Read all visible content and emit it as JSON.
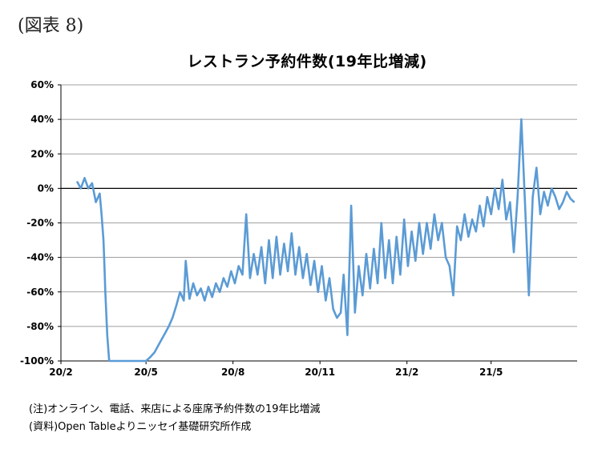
{
  "figure_label": "(図表 8)",
  "notes": {
    "note": "(注)オンライン、電話、来店による座席予約件数の19年比増減",
    "source": "(資料)Open Tableよりニッセイ基礎研究所作成"
  },
  "colors": {
    "line": "#5b9bd5",
    "grid": "#808080",
    "axis": "#000000"
  },
  "chart_data": {
    "type": "line",
    "title": "レストラン予約件数(19年比増減)",
    "xlabel": "",
    "ylabel": "",
    "ylim": [
      -100,
      60
    ],
    "yticks": [
      60,
      40,
      20,
      0,
      -20,
      -40,
      -60,
      -80,
      -100
    ],
    "ytick_labels": [
      "60%",
      "40%",
      "20%",
      "0%",
      "-20%",
      "-40%",
      "-60%",
      "-80%",
      "-100%"
    ],
    "xticks": [
      "20/2",
      "20/5",
      "20/8",
      "20/11",
      "21/2",
      "21/5"
    ],
    "grid": true,
    "legend": "none",
    "series": [
      {
        "x": [
          "2020-02-18",
          "2020-02-22",
          "2020-02-26",
          "2020-03-01",
          "2020-03-05",
          "2020-03-09",
          "2020-03-13",
          "2020-03-15",
          "2020-03-17",
          "2020-03-18",
          "2020-03-19",
          "2020-03-21",
          "2020-03-23",
          "2020-03-27",
          "2020-04-01",
          "2020-04-10",
          "2020-04-20",
          "2020-05-01",
          "2020-05-05",
          "2020-05-10",
          "2020-05-15",
          "2020-05-20",
          "2020-05-25",
          "2020-05-29",
          "2020-06-02",
          "2020-06-06",
          "2020-06-10",
          "2020-06-12",
          "2020-06-16",
          "2020-06-20",
          "2020-06-24",
          "2020-06-28",
          "2020-07-02",
          "2020-07-06",
          "2020-07-10",
          "2020-07-14",
          "2020-07-18",
          "2020-07-22",
          "2020-07-26",
          "2020-07-30",
          "2020-08-03",
          "2020-08-07",
          "2020-08-11",
          "2020-08-15",
          "2020-08-19",
          "2020-08-23",
          "2020-08-27",
          "2020-08-31",
          "2020-09-04",
          "2020-09-08",
          "2020-09-12",
          "2020-09-16",
          "2020-09-20",
          "2020-09-24",
          "2020-09-28",
          "2020-10-02",
          "2020-10-06",
          "2020-10-10",
          "2020-10-14",
          "2020-10-18",
          "2020-10-22",
          "2020-10-26",
          "2020-10-30",
          "2020-11-03",
          "2020-11-07",
          "2020-11-11",
          "2020-11-15",
          "2020-11-19",
          "2020-11-23",
          "2020-11-26",
          "2020-11-30",
          "2020-12-04",
          "2020-12-08",
          "2020-12-12",
          "2020-12-16",
          "2020-12-20",
          "2020-12-24",
          "2020-12-28",
          "2021-01-01",
          "2021-01-05",
          "2021-01-09",
          "2021-01-13",
          "2021-01-17",
          "2021-01-21",
          "2021-01-25",
          "2021-01-29",
          "2021-02-02",
          "2021-02-06",
          "2021-02-10",
          "2021-02-14",
          "2021-02-18",
          "2021-02-22",
          "2021-02-26",
          "2021-03-02",
          "2021-03-06",
          "2021-03-10",
          "2021-03-14",
          "2021-03-18",
          "2021-03-22",
          "2021-03-26",
          "2021-03-30",
          "2021-04-03",
          "2021-04-07",
          "2021-04-11",
          "2021-04-15",
          "2021-04-19",
          "2021-04-23",
          "2021-04-27",
          "2021-05-01",
          "2021-05-05",
          "2021-05-09",
          "2021-05-13",
          "2021-05-17",
          "2021-05-21",
          "2021-05-25",
          "2021-05-29",
          "2021-06-02",
          "2021-06-06",
          "2021-06-10",
          "2021-06-14",
          "2021-06-18",
          "2021-06-22",
          "2021-06-26",
          "2021-06-30",
          "2021-07-04",
          "2021-07-08",
          "2021-07-12",
          "2021-07-16",
          "2021-07-20",
          "2021-07-24",
          "2021-07-28"
        ],
        "values": [
          4,
          0,
          6,
          0,
          3,
          -8,
          -3,
          -15,
          -30,
          -45,
          -60,
          -85,
          -100,
          -100,
          -100,
          -100,
          -100,
          -100,
          -98,
          -95,
          -90,
          -85,
          -80,
          -75,
          -68,
          -60,
          -65,
          -42,
          -64,
          -55,
          -62,
          -58,
          -65,
          -57,
          -63,
          -55,
          -60,
          -52,
          -57,
          -48,
          -55,
          -45,
          -50,
          -15,
          -52,
          -38,
          -50,
          -34,
          -55,
          -30,
          -52,
          -28,
          -50,
          -32,
          -48,
          -26,
          -50,
          -34,
          -52,
          -38,
          -56,
          -42,
          -60,
          -45,
          -65,
          -52,
          -70,
          -75,
          -72,
          -50,
          -85,
          -10,
          -72,
          -45,
          -62,
          -38,
          -58,
          -35,
          -55,
          -20,
          -52,
          -30,
          -55,
          -28,
          -50,
          -18,
          -45,
          -25,
          -42,
          -20,
          -38,
          -20,
          -35,
          -15,
          -30,
          -20,
          -40,
          -45,
          -62,
          -22,
          -30,
          -15,
          -28,
          -18,
          -25,
          -10,
          -22,
          -5,
          -15,
          0,
          -12,
          5,
          -18,
          -8,
          -37,
          -5,
          40,
          -10,
          -62,
          -5,
          12,
          -15,
          -2,
          -10,
          0,
          -5,
          -12,
          -8,
          -2,
          -6,
          -8
        ]
      }
    ]
  }
}
